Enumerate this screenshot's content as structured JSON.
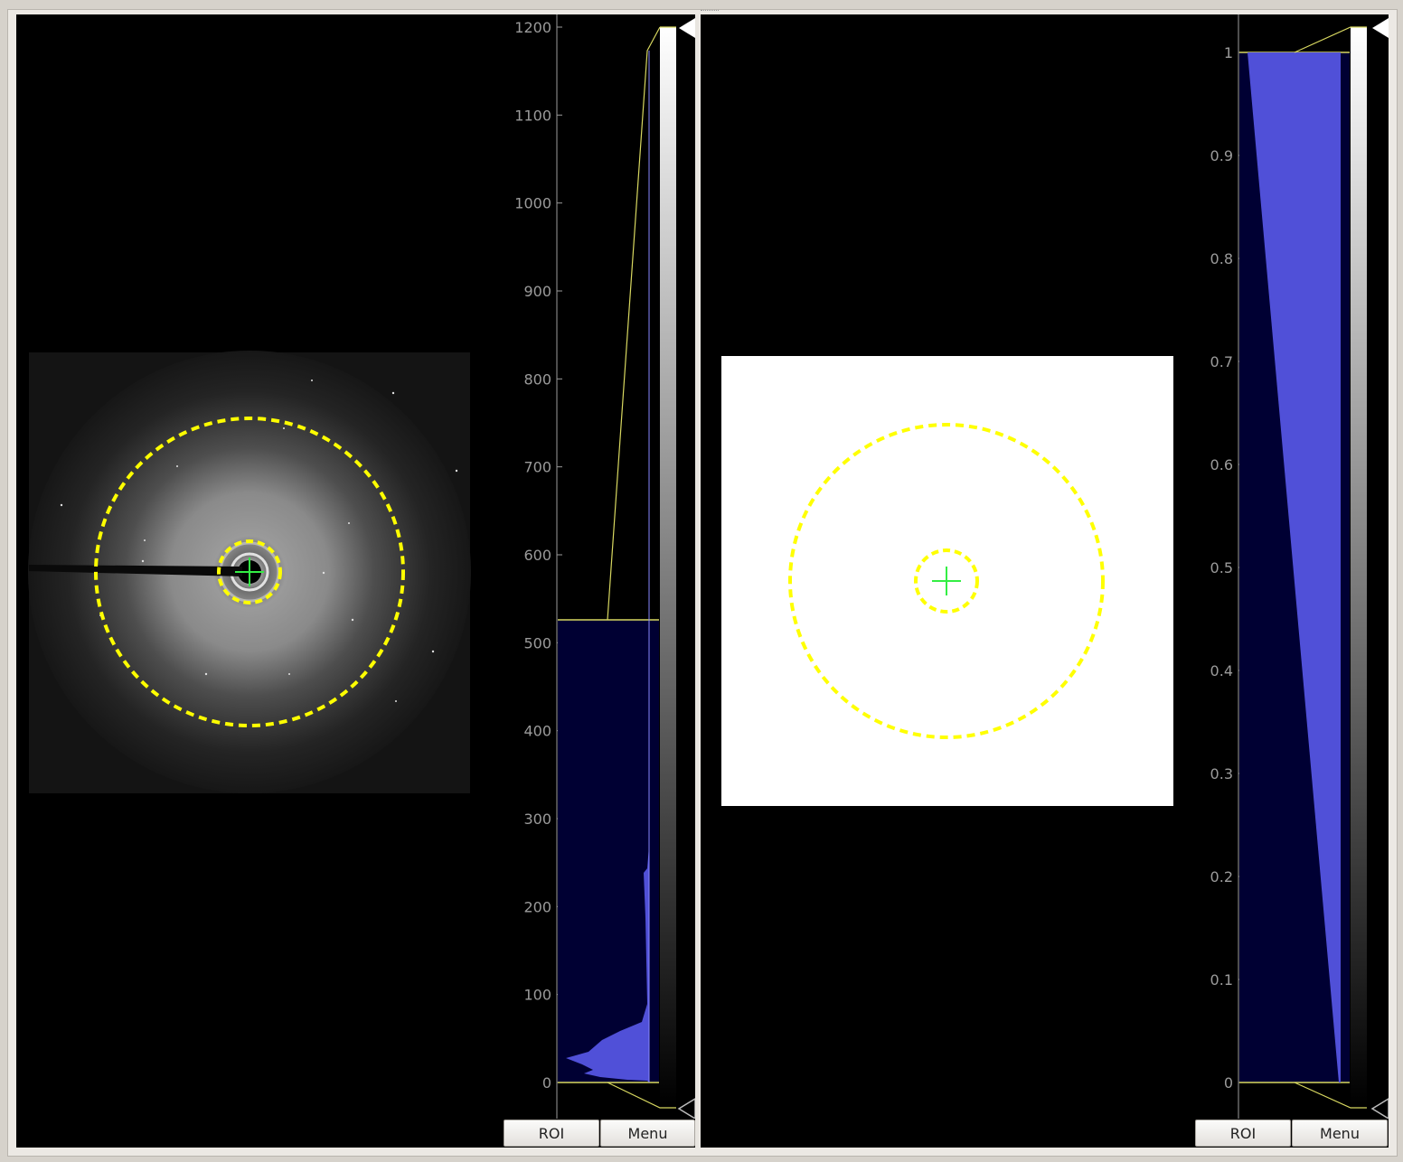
{
  "left_panel": {
    "histogram_ticks": [
      "0",
      "100",
      "200",
      "300",
      "400",
      "500",
      "600",
      "700",
      "800",
      "900",
      "1000",
      "1100",
      "1200"
    ],
    "roi_button": "ROI",
    "menu_button": "Menu"
  },
  "right_panel": {
    "histogram_ticks": [
      "0",
      "0.1",
      "0.2",
      "0.3",
      "0.4",
      "0.5",
      "0.6",
      "0.7",
      "0.8",
      "0.9",
      "1"
    ],
    "roi_button": "ROI",
    "menu_button": "Menu"
  },
  "colors": {
    "roi_ring": "#ffff00",
    "center_marker": "#33ee44",
    "histogram_fill": "#5050d8",
    "histogram_bg": "#000033",
    "level_line": "#d8d860"
  }
}
